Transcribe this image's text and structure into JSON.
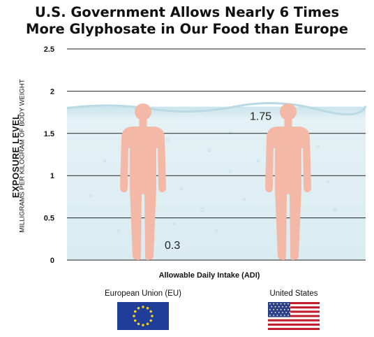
{
  "title_line1": "U.S. Government Allows Nearly 6 Times",
  "title_line2": "More Glyphosate in Our Food than Europe",
  "chart_data": {
    "type": "bar",
    "title": "U.S. Government Allows Nearly 6 Times More Glyphosate in Our Food than Europe",
    "ylabel": "EXPOSURE LEVEL",
    "ylabel_sub": "MILLIGRAMS PER KILOGRAM OF BODY WEIGHT",
    "xlabel": "Allowable Daily Intake (ADI)",
    "categories": [
      "European Union (EU)",
      "United States"
    ],
    "values": [
      0.3,
      1.75
    ],
    "data_labels": [
      "0.3",
      "1.75"
    ],
    "ylim": [
      0,
      2.5
    ],
    "yticks": [
      "0",
      "0.5",
      "1",
      "1.5",
      "2",
      "2.5"
    ],
    "grid": true,
    "colors": {
      "eu_fill": "#283a8c",
      "us_fill": "#b3192a",
      "empty_fill": "#f3b9a6",
      "water": "#dceef3",
      "grid": "#222222"
    }
  }
}
